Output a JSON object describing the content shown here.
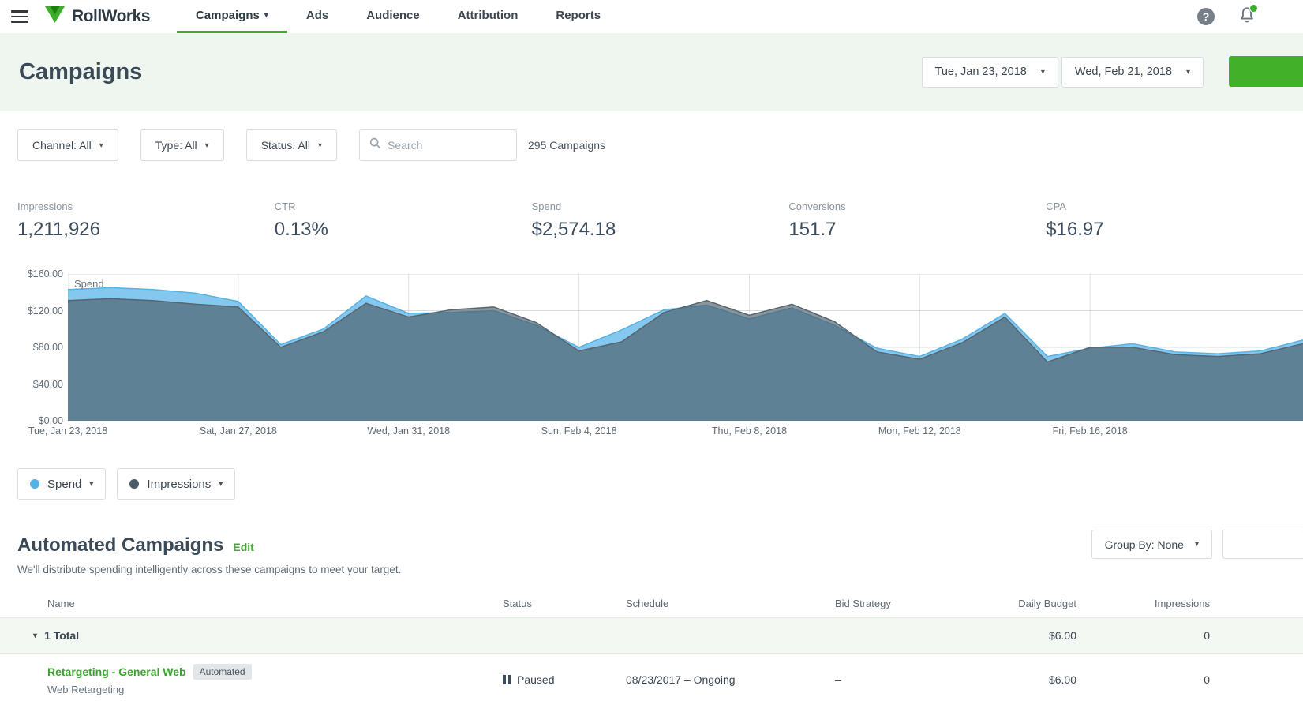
{
  "glyphs": {
    "caret": "▾",
    "help": "?"
  },
  "colors": {
    "accent": "#3DAE2B",
    "header_bg": "#EFF6EF"
  },
  "topnav": {
    "brand": "RollWorks",
    "items": [
      {
        "label": "Campaigns",
        "active": true,
        "has_caret": true
      },
      {
        "label": "Ads"
      },
      {
        "label": "Audience"
      },
      {
        "label": "Attribution"
      },
      {
        "label": "Reports"
      }
    ]
  },
  "header": {
    "title": "Campaigns",
    "date_start": "Tue, Jan 23, 2018",
    "date_end": "Wed, Feb 21, 2018"
  },
  "filters": {
    "channel": "Channel: All",
    "type": "Type: All",
    "status": "Status: All",
    "search_placeholder": "Search",
    "count": "295 Campaigns"
  },
  "metrics": [
    {
      "label": "Impressions",
      "value": "1,211,926"
    },
    {
      "label": "CTR",
      "value": "0.13%"
    },
    {
      "label": "Spend",
      "value": "$2,574.18"
    },
    {
      "label": "Conversions",
      "value": "151.7"
    },
    {
      "label": "CPA",
      "value": "$16.97"
    }
  ],
  "chart_data": {
    "type": "area",
    "title": "Spend",
    "ylabel": "Spend ($)",
    "ylim": [
      0,
      160
    ],
    "y_tick_labels": [
      "$160.00",
      "$120.00",
      "$80.00",
      "$40.00",
      "$0.00"
    ],
    "x_range": [
      "Tue, Jan 23, 2018",
      "Wed, Feb 21, 2018"
    ],
    "days_total": 29,
    "x_tick_days": [
      0,
      4,
      8,
      12,
      16,
      20,
      24
    ],
    "x_tick_labels": [
      "Tue, Jan 23, 2018",
      "Sat, Jan 27, 2018",
      "Wed, Jan 31, 2018",
      "Sun, Feb 4, 2018",
      "Thu, Feb 8, 2018",
      "Mon, Feb 12, 2018",
      "Fri, Feb 16, 2018"
    ],
    "grid": true,
    "legend_position": "below-as-buttons",
    "note": "Impressions series plotted on hidden secondary axis; values below are estimated in $-axis display units",
    "series": [
      {
        "name": "Spend",
        "fill": "#85C8EF",
        "fill_opacity": 1,
        "stroke": "#58B2E3",
        "values": [
          143,
          145,
          143,
          139,
          130,
          83,
          100,
          136,
          117,
          118,
          120,
          104,
          80,
          99,
          121,
          126,
          111,
          123,
          104,
          79,
          70,
          89,
          117,
          70,
          79,
          84,
          75,
          73,
          76,
          88
        ]
      },
      {
        "name": "Impressions",
        "fill": "#4A5A66",
        "fill_opacity": 0.65,
        "stroke": "#56656F",
        "values": [
          131,
          133,
          131,
          127,
          124,
          80,
          97,
          128,
          113,
          121,
          124,
          107,
          76,
          86,
          118,
          131,
          115,
          127,
          108,
          75,
          67,
          85,
          113,
          64,
          80,
          80,
          72,
          70,
          73,
          84
        ]
      }
    ]
  },
  "legend": [
    {
      "label": "Spend",
      "color": "#55B1E4"
    },
    {
      "label": "Impressions",
      "color": "#4C5B69"
    }
  ],
  "section": {
    "title": "Automated Campaigns",
    "edit_label": "Edit",
    "subtitle": "We'll distribute spending intelligently across these campaigns to meet your target.",
    "group_by": "Group By: None"
  },
  "table": {
    "columns": [
      "Name",
      "Status",
      "Schedule",
      "Bid Strategy",
      "Daily Budget",
      "Impressions"
    ],
    "total_row": {
      "label": "1 Total",
      "daily_budget": "$6.00",
      "impressions": "0"
    },
    "rows": [
      {
        "name": "Retargeting - General Web",
        "badge": "Automated",
        "subtitle": "Web Retargeting",
        "status": "Paused",
        "schedule": "08/23/2017 – Ongoing",
        "bid_strategy": "–",
        "daily_budget": "$6.00",
        "impressions": "0"
      }
    ]
  }
}
